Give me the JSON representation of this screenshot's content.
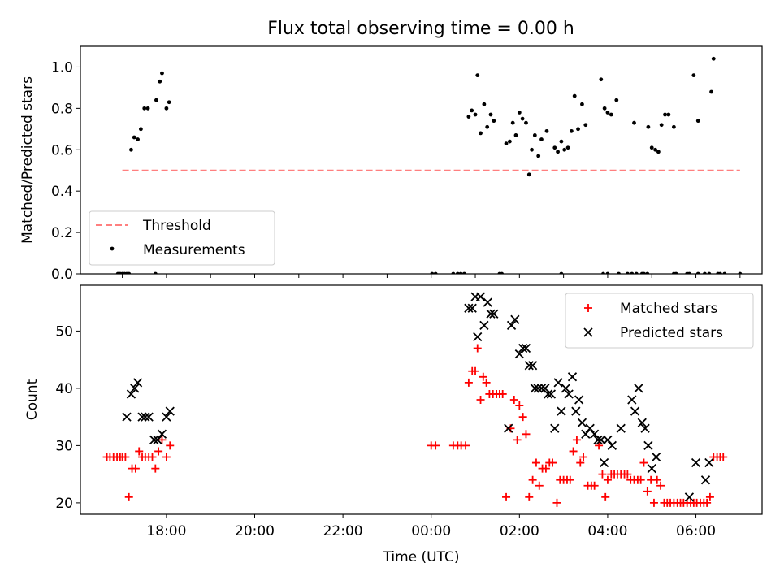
{
  "figure": {
    "title": "Flux total observing time = 0.00 h"
  },
  "chart_data": [
    {
      "type": "scatter",
      "ylabel": "Matched/Predicted stars",
      "ylim": [
        0,
        1.1
      ],
      "yticks": [
        "0.0",
        "0.2",
        "0.4",
        "0.6",
        "0.8",
        "1.0"
      ],
      "ytick_values": [
        0,
        0.2,
        0.4,
        0.6,
        0.8,
        1.0
      ],
      "xlim": [
        16.05,
        31.5
      ],
      "xticks_values": [
        17,
        18,
        19,
        20,
        21,
        22,
        23,
        24,
        25,
        26,
        27,
        28,
        29,
        30,
        31
      ],
      "grid": false,
      "legend_placement": "lower-left",
      "threshold": {
        "name": "Threshold",
        "value": 0.5,
        "x_range": [
          17.0,
          31.0
        ],
        "color": "#ff7f7f"
      },
      "series": [
        {
          "name": "Measurements",
          "color": "#000000",
          "marker": "dot",
          "points": [
            [
              16.9,
              0
            ],
            [
              16.95,
              0
            ],
            [
              17.0,
              0
            ],
            [
              17.05,
              0
            ],
            [
              17.1,
              0
            ],
            [
              17.15,
              0
            ],
            [
              17.2,
              0.6
            ],
            [
              17.27,
              0.66
            ],
            [
              17.35,
              0.65
            ],
            [
              17.42,
              0.7
            ],
            [
              17.5,
              0.8
            ],
            [
              17.58,
              0.8
            ],
            [
              17.77,
              0.84
            ],
            [
              17.85,
              0.93
            ],
            [
              17.9,
              0.97
            ],
            [
              18.0,
              0.8
            ],
            [
              18.06,
              0.83
            ],
            [
              17.75,
              0
            ],
            [
              24.02,
              0
            ],
            [
              24.1,
              0
            ],
            [
              24.5,
              0
            ],
            [
              24.6,
              0
            ],
            [
              24.67,
              0
            ],
            [
              24.75,
              0
            ],
            [
              24.85,
              0.76
            ],
            [
              24.92,
              0.79
            ],
            [
              25.0,
              0.77
            ],
            [
              25.05,
              0.96
            ],
            [
              25.12,
              0.68
            ],
            [
              25.2,
              0.82
            ],
            [
              25.27,
              0.71
            ],
            [
              25.35,
              0.77
            ],
            [
              25.42,
              0.74
            ],
            [
              25.55,
              0
            ],
            [
              25.6,
              0
            ],
            [
              25.7,
              0.63
            ],
            [
              25.78,
              0.64
            ],
            [
              25.85,
              0.73
            ],
            [
              25.92,
              0.67
            ],
            [
              26.0,
              0.78
            ],
            [
              26.07,
              0.75
            ],
            [
              26.15,
              0.73
            ],
            [
              26.22,
              0.48
            ],
            [
              26.28,
              0.6
            ],
            [
              26.35,
              0.67
            ],
            [
              26.43,
              0.57
            ],
            [
              26.5,
              0.65
            ],
            [
              26.62,
              0.69
            ],
            [
              26.8,
              0.61
            ],
            [
              26.87,
              0.59
            ],
            [
              26.95,
              0.64
            ],
            [
              27.02,
              0.6
            ],
            [
              27.1,
              0.61
            ],
            [
              27.18,
              0.69
            ],
            [
              27.25,
              0.86
            ],
            [
              27.33,
              0.7
            ],
            [
              27.42,
              0.82
            ],
            [
              27.5,
              0.72
            ],
            [
              27.85,
              0.94
            ],
            [
              27.93,
              0.8
            ],
            [
              28.0,
              0.78
            ],
            [
              28.08,
              0.77
            ],
            [
              28.2,
              0.84
            ],
            [
              28.6,
              0.73
            ],
            [
              28.92,
              0.71
            ],
            [
              29.0,
              0.61
            ],
            [
              29.08,
              0.6
            ],
            [
              29.15,
              0.59
            ],
            [
              29.22,
              0.72
            ],
            [
              29.3,
              0.77
            ],
            [
              29.38,
              0.77
            ],
            [
              29.5,
              0.71
            ],
            [
              29.95,
              0.96
            ],
            [
              30.05,
              0.74
            ],
            [
              30.35,
              0.88
            ],
            [
              30.4,
              1.04
            ],
            [
              26.95,
              0
            ],
            [
              27.9,
              0
            ],
            [
              28.0,
              0
            ],
            [
              28.25,
              0
            ],
            [
              28.45,
              0
            ],
            [
              28.55,
              0
            ],
            [
              28.65,
              0
            ],
            [
              28.78,
              0
            ],
            [
              28.82,
              0
            ],
            [
              28.9,
              0
            ],
            [
              29.5,
              0
            ],
            [
              29.55,
              0
            ],
            [
              29.8,
              0
            ],
            [
              29.85,
              0
            ],
            [
              30.05,
              0
            ],
            [
              30.2,
              0
            ],
            [
              30.3,
              0
            ],
            [
              30.5,
              0
            ],
            [
              30.55,
              0
            ],
            [
              30.65,
              0
            ],
            [
              31.0,
              0
            ]
          ]
        }
      ]
    },
    {
      "type": "scatter",
      "xlabel": "Time (UTC)",
      "ylabel": "Count",
      "ylim": [
        18,
        58
      ],
      "yticks": [
        "20",
        "30",
        "40",
        "50"
      ],
      "ytick_values": [
        20,
        30,
        40,
        50
      ],
      "xlim": [
        16.05,
        31.5
      ],
      "xtick_values": [
        18,
        20,
        22,
        24,
        26,
        28,
        30
      ],
      "xtick_labels": [
        "18:00",
        "20:00",
        "22:00",
        "00:00",
        "02:00",
        "04:00",
        "06:00"
      ],
      "grid": false,
      "legend_placement": "upper-right",
      "series": [
        {
          "name": "Matched stars",
          "color": "#ff0000",
          "marker": "plus",
          "points": [
            [
              16.65,
              28
            ],
            [
              16.72,
              28
            ],
            [
              16.8,
              28
            ],
            [
              16.88,
              28
            ],
            [
              16.95,
              28
            ],
            [
              17.0,
              28
            ],
            [
              17.07,
              28
            ],
            [
              17.15,
              21
            ],
            [
              17.22,
              26
            ],
            [
              17.3,
              26
            ],
            [
              17.38,
              29
            ],
            [
              17.45,
              28
            ],
            [
              17.52,
              28
            ],
            [
              17.6,
              28
            ],
            [
              17.68,
              28
            ],
            [
              17.75,
              26
            ],
            [
              17.82,
              29
            ],
            [
              17.9,
              31
            ],
            [
              18.0,
              28
            ],
            [
              18.08,
              30
            ],
            [
              24.0,
              30
            ],
            [
              24.1,
              30
            ],
            [
              24.5,
              30
            ],
            [
              24.6,
              30
            ],
            [
              24.68,
              30
            ],
            [
              24.78,
              30
            ],
            [
              24.85,
              41
            ],
            [
              24.93,
              43
            ],
            [
              25.0,
              43
            ],
            [
              25.05,
              47
            ],
            [
              25.12,
              38
            ],
            [
              25.18,
              42
            ],
            [
              25.25,
              41
            ],
            [
              25.32,
              39
            ],
            [
              25.4,
              39
            ],
            [
              25.48,
              39
            ],
            [
              25.55,
              39
            ],
            [
              25.62,
              39
            ],
            [
              25.7,
              21
            ],
            [
              25.8,
              33
            ],
            [
              25.88,
              38
            ],
            [
              25.95,
              31
            ],
            [
              26.0,
              37
            ],
            [
              26.08,
              35
            ],
            [
              26.15,
              32
            ],
            [
              26.22,
              21
            ],
            [
              26.3,
              24
            ],
            [
              26.38,
              27
            ],
            [
              26.45,
              23
            ],
            [
              26.52,
              26
            ],
            [
              26.6,
              26
            ],
            [
              26.68,
              27
            ],
            [
              26.75,
              27
            ],
            [
              26.85,
              20
            ],
            [
              26.92,
              24
            ],
            [
              27.0,
              24
            ],
            [
              27.08,
              24
            ],
            [
              27.15,
              24
            ],
            [
              27.22,
              29
            ],
            [
              27.3,
              31
            ],
            [
              27.38,
              27
            ],
            [
              27.45,
              28
            ],
            [
              27.55,
              23
            ],
            [
              27.63,
              23
            ],
            [
              27.7,
              23
            ],
            [
              27.8,
              30
            ],
            [
              27.88,
              25
            ],
            [
              27.95,
              21
            ],
            [
              28.0,
              24
            ],
            [
              28.08,
              25
            ],
            [
              28.15,
              25
            ],
            [
              28.22,
              25
            ],
            [
              28.3,
              25
            ],
            [
              28.38,
              25
            ],
            [
              28.45,
              25
            ],
            [
              28.52,
              24
            ],
            [
              28.6,
              24
            ],
            [
              28.68,
              24
            ],
            [
              28.75,
              24
            ],
            [
              28.82,
              27
            ],
            [
              28.9,
              22
            ],
            [
              28.98,
              24
            ],
            [
              29.05,
              20
            ],
            [
              29.12,
              24
            ],
            [
              29.2,
              23
            ],
            [
              29.28,
              20
            ],
            [
              29.35,
              20
            ],
            [
              29.42,
              20
            ],
            [
              29.5,
              20
            ],
            [
              29.58,
              20
            ],
            [
              29.65,
              20
            ],
            [
              29.72,
              20
            ],
            [
              29.8,
              20
            ],
            [
              29.88,
              20
            ],
            [
              29.95,
              20
            ],
            [
              30.02,
              20
            ],
            [
              30.1,
              20
            ],
            [
              30.18,
              20
            ],
            [
              30.25,
              20
            ],
            [
              30.32,
              21
            ],
            [
              30.4,
              28
            ],
            [
              30.48,
              28
            ],
            [
              30.55,
              28
            ],
            [
              30.62,
              28
            ]
          ]
        },
        {
          "name": "Predicted stars",
          "color": "#000000",
          "marker": "x",
          "points": [
            [
              17.1,
              35
            ],
            [
              17.2,
              39
            ],
            [
              17.28,
              40
            ],
            [
              17.35,
              41
            ],
            [
              17.45,
              35
            ],
            [
              17.52,
              35
            ],
            [
              17.6,
              35
            ],
            [
              17.72,
              31
            ],
            [
              17.8,
              31
            ],
            [
              17.9,
              32
            ],
            [
              18.0,
              35
            ],
            [
              18.08,
              36
            ],
            [
              24.85,
              54
            ],
            [
              24.93,
              54
            ],
            [
              25.0,
              56
            ],
            [
              25.05,
              49
            ],
            [
              25.12,
              56
            ],
            [
              25.2,
              51
            ],
            [
              25.28,
              55
            ],
            [
              25.35,
              53
            ],
            [
              25.42,
              53
            ],
            [
              25.75,
              33
            ],
            [
              25.82,
              51
            ],
            [
              25.9,
              52
            ],
            [
              26.0,
              46
            ],
            [
              26.08,
              47
            ],
            [
              26.15,
              47
            ],
            [
              26.22,
              44
            ],
            [
              26.3,
              44
            ],
            [
              26.35,
              40
            ],
            [
              26.42,
              40
            ],
            [
              26.5,
              40
            ],
            [
              26.58,
              40
            ],
            [
              26.65,
              39
            ],
            [
              26.72,
              39
            ],
            [
              26.8,
              33
            ],
            [
              26.88,
              41
            ],
            [
              26.95,
              36
            ],
            [
              27.05,
              40
            ],
            [
              27.12,
              39
            ],
            [
              27.2,
              42
            ],
            [
              27.28,
              36
            ],
            [
              27.35,
              38
            ],
            [
              27.42,
              34
            ],
            [
              27.5,
              32
            ],
            [
              27.6,
              33
            ],
            [
              27.7,
              32
            ],
            [
              27.78,
              31
            ],
            [
              27.85,
              31
            ],
            [
              27.92,
              27
            ],
            [
              28.0,
              31
            ],
            [
              28.1,
              30
            ],
            [
              28.3,
              33
            ],
            [
              28.55,
              38
            ],
            [
              28.62,
              36
            ],
            [
              28.7,
              40
            ],
            [
              28.78,
              34
            ],
            [
              28.85,
              33
            ],
            [
              28.92,
              30
            ],
            [
              29.0,
              26
            ],
            [
              29.1,
              28
            ],
            [
              29.85,
              21
            ],
            [
              30.0,
              27
            ],
            [
              30.22,
              24
            ],
            [
              30.3,
              27
            ]
          ]
        }
      ]
    }
  ]
}
